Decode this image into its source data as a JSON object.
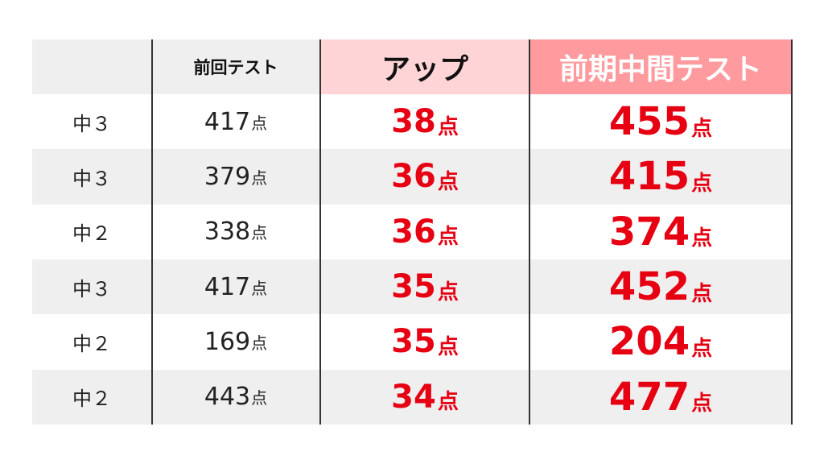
{
  "header": {
    "blank": "",
    "previous_test": "前回テスト",
    "up": "アップ",
    "midterm_test": "前期中間テスト"
  },
  "rows": [
    {
      "grade": "中３",
      "previous": "417",
      "up": "38",
      "midterm": "455"
    },
    {
      "grade": "中３",
      "previous": "379",
      "up": "36",
      "midterm": "415"
    },
    {
      "grade": "中２",
      "previous": "338",
      "up": "36",
      "midterm": "374"
    },
    {
      "grade": "中３",
      "previous": "417",
      "up": "35",
      "midterm": "452"
    },
    {
      "grade": "中２",
      "previous": "169",
      "up": "35",
      "midterm": "204"
    },
    {
      "grade": "中２",
      "previous": "443",
      "up": "34",
      "midterm": "477"
    }
  ],
  "unit": "点",
  "colors": {
    "accent_red": "#e60012",
    "header_up_bg": "#ffd4d6",
    "header_midterm_bg": "#ff9a9e",
    "stripe_gray": "#efefef"
  }
}
